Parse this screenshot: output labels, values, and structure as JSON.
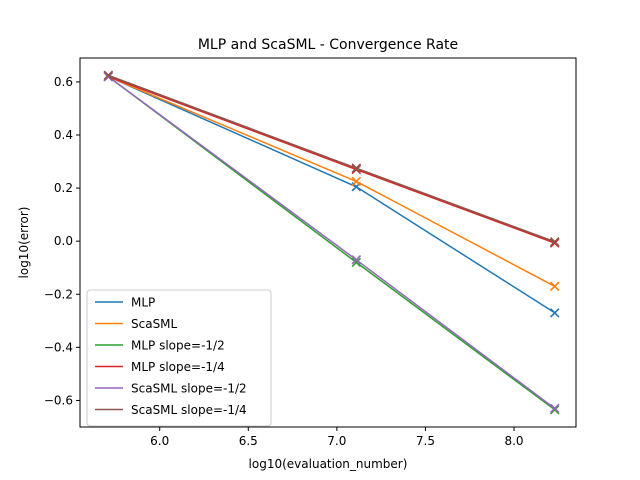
{
  "chart_data": {
    "type": "line",
    "title": "MLP and ScaSML - Convergence Rate",
    "xlabel": "log10(evaluation_number)",
    "ylabel": "log10(error)",
    "xlim": [
      5.55,
      8.35
    ],
    "ylim": [
      -0.7,
      0.69
    ],
    "xticks": [
      6.0,
      6.5,
      7.0,
      7.5,
      8.0
    ],
    "xtick_labels": [
      "6.0",
      "6.5",
      "7.0",
      "7.5",
      "8.0"
    ],
    "yticks": [
      -0.6,
      -0.4,
      -0.2,
      0.0,
      0.2,
      0.4,
      0.6
    ],
    "ytick_labels": [
      "−0.6",
      "−0.4",
      "−0.2",
      "0.0",
      "0.2",
      "0.4",
      "0.6"
    ],
    "grid": false,
    "legend_position": "lower-left",
    "x": [
      5.71,
      7.11,
      8.23
    ],
    "series": [
      {
        "name": "MLP",
        "color": "#1f77b4",
        "values": [
          0.62,
          0.205,
          -0.27
        ]
      },
      {
        "name": "ScaSML",
        "color": "#ff7f0e",
        "values": [
          0.62,
          0.225,
          -0.17
        ]
      },
      {
        "name": "MLP slope=-1/2",
        "color": "#2ca02c",
        "values": [
          0.62,
          -0.08,
          -0.635
        ]
      },
      {
        "name": "MLP slope=-1/4",
        "color": "#d62728",
        "values": [
          0.62,
          0.27,
          -0.007
        ]
      },
      {
        "name": "ScaSML slope=-1/2",
        "color": "#9467bd",
        "values": [
          0.62,
          -0.07,
          -0.63
        ]
      },
      {
        "name": "ScaSML slope=-1/4",
        "color": "#8c564b",
        "values": [
          0.625,
          0.275,
          -0.002
        ]
      }
    ],
    "marker": "x"
  }
}
